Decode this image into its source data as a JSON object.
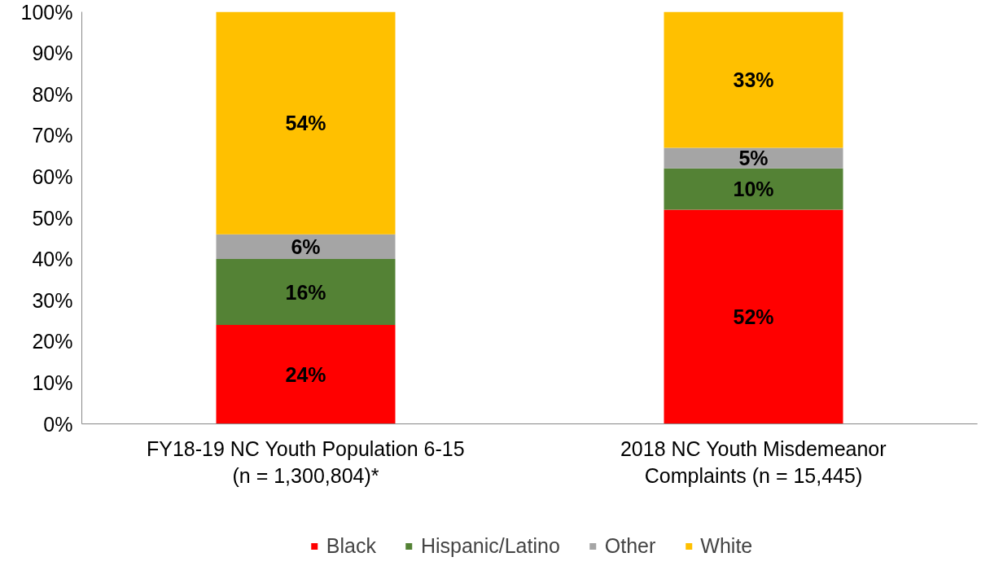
{
  "chart_data": {
    "type": "bar",
    "stacked": true,
    "categories": [
      "FY18-19 NC Youth Population 6-15\n(n = 1,300,804)*",
      "2018 NC Youth Misdemeanor\nComplaints (n = 15,445)"
    ],
    "series": [
      {
        "name": "Black",
        "color": "#ff0000",
        "values": [
          24,
          52
        ],
        "value_labels": [
          "24%",
          "52%"
        ]
      },
      {
        "name": "Hispanic/Latino",
        "color": "#548235",
        "values": [
          16,
          10
        ],
        "value_labels": [
          "16%",
          "10%"
        ]
      },
      {
        "name": "Other",
        "color": "#a5a5a5",
        "values": [
          6,
          5
        ],
        "value_labels": [
          "6%",
          "5%"
        ]
      },
      {
        "name": "White",
        "color": "#ffc000",
        "values": [
          54,
          33
        ],
        "value_labels": [
          "54%",
          "33%"
        ]
      }
    ],
    "ylim": [
      0,
      100
    ],
    "yticks": [
      {
        "value": 0,
        "label": "0%"
      },
      {
        "value": 10,
        "label": "10%"
      },
      {
        "value": 20,
        "label": "20%"
      },
      {
        "value": 30,
        "label": "30%"
      },
      {
        "value": 40,
        "label": "40%"
      },
      {
        "value": 50,
        "label": "50%"
      },
      {
        "value": 60,
        "label": "60%"
      },
      {
        "value": 70,
        "label": "70%"
      },
      {
        "value": 80,
        "label": "80%"
      },
      {
        "value": 90,
        "label": "90%"
      },
      {
        "value": 100,
        "label": "100%"
      }
    ],
    "grid": false,
    "legend": "bottom"
  }
}
